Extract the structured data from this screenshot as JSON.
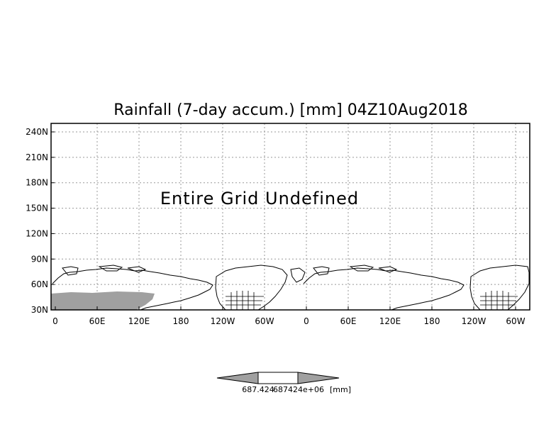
{
  "title": "Rainfall (7-day accum.) [mm] 04Z10Aug2018",
  "message": "Entire Grid Undefined",
  "y_ticks": [
    "240N",
    "210N",
    "180N",
    "150N",
    "120N",
    "90N",
    "60N",
    "30N"
  ],
  "x_ticks": [
    "0",
    "60E",
    "120E",
    "180",
    "120W",
    "60W",
    "0",
    "60E",
    "120E",
    "180",
    "120W",
    "60W"
  ],
  "colorbar": {
    "min_label": "687.424",
    "max_label": "687424e+06",
    "unit_label": "[mm]"
  },
  "colors": {
    "land_fill": "#a0a0a0",
    "frame": "#000000",
    "grid": "#999999"
  }
}
